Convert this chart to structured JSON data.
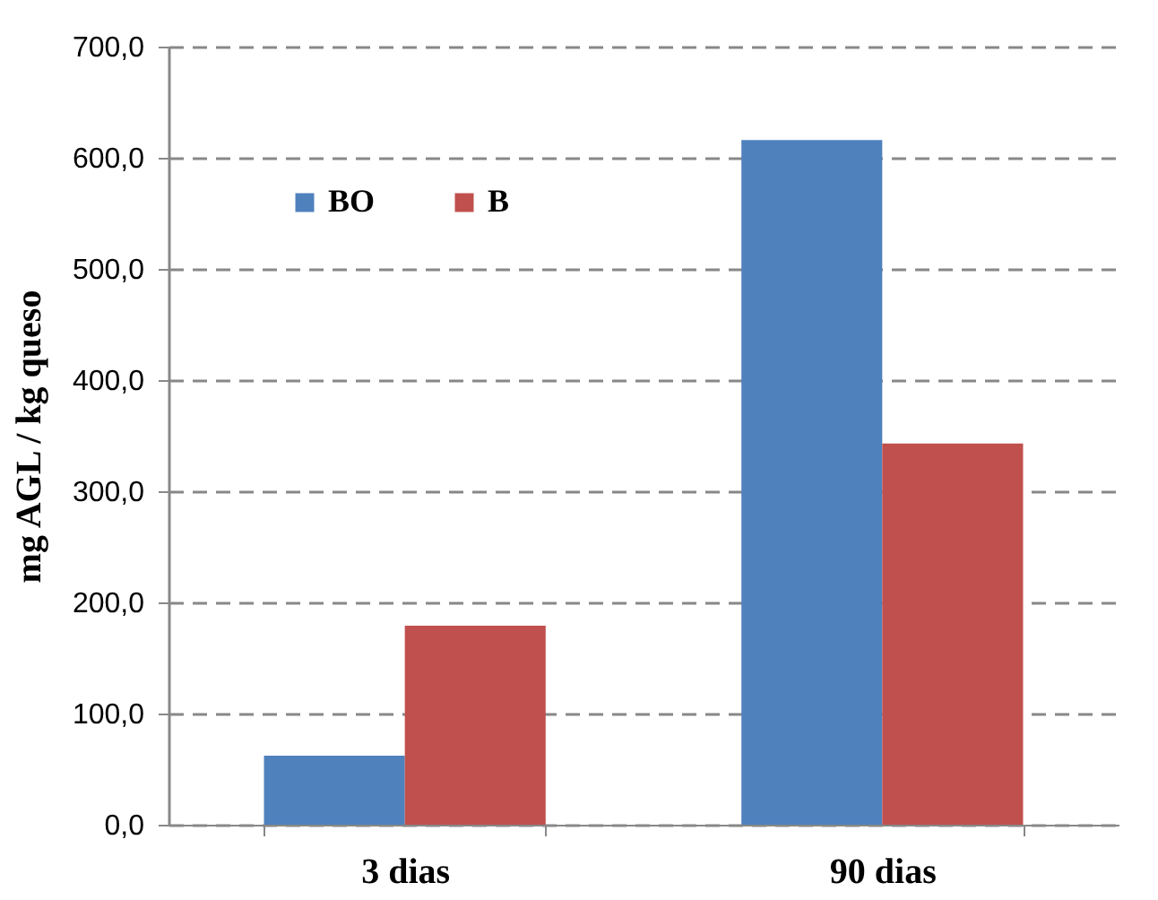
{
  "chart_data": {
    "type": "bar",
    "ylabel": "mg AGL / kg queso",
    "categories": [
      "3 dias",
      "90 dias"
    ],
    "series": [
      {
        "name": "BO",
        "color": "#4f81bd",
        "values": [
          62,
          616
        ]
      },
      {
        "name": "B",
        "color": "#c0504d",
        "values": [
          179,
          343
        ]
      }
    ],
    "ylim": [
      0,
      700
    ],
    "yticks": [
      {
        "value": 0,
        "label": "0,0"
      },
      {
        "value": 100,
        "label": "100,0"
      },
      {
        "value": 200,
        "label": "200,0"
      },
      {
        "value": 300,
        "label": "300,0"
      },
      {
        "value": 400,
        "label": "400,0"
      },
      {
        "value": 500,
        "label": "500,0"
      },
      {
        "value": 600,
        "label": "600,0"
      },
      {
        "value": 700,
        "label": "700,0"
      }
    ],
    "grid": "y",
    "legend": "top left"
  }
}
